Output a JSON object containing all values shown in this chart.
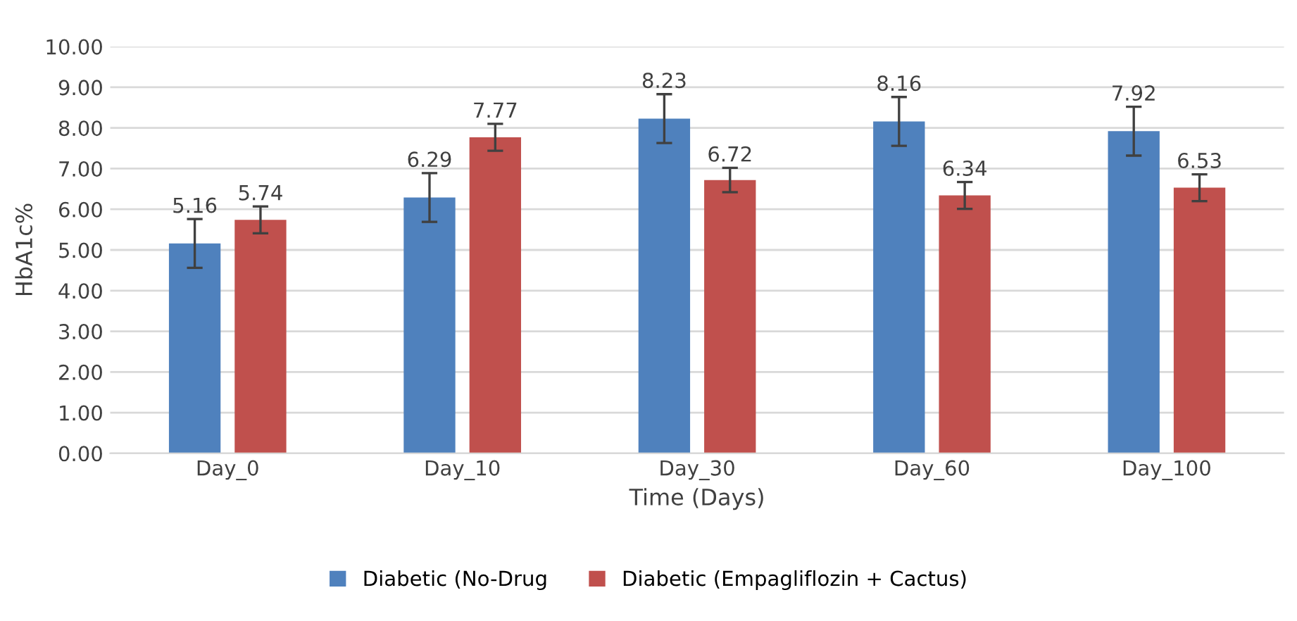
{
  "chart_data": {
    "type": "bar",
    "xlabel": "Time (Days)",
    "ylabel": "HbA1c%",
    "categories": [
      "Day_0",
      "Day_10",
      "Day_30",
      "Day_60",
      "Day_100"
    ],
    "series": [
      {
        "name": "Diabetic (No-Drug",
        "color": "#4f81bd",
        "values": [
          5.16,
          6.29,
          8.23,
          8.16,
          7.92
        ],
        "errors": [
          0.6,
          0.6,
          0.6,
          0.6,
          0.6
        ]
      },
      {
        "name": "Diabetic (Empagliflozin + Cactus)",
        "color": "#c0504d",
        "values": [
          5.74,
          7.77,
          6.72,
          6.34,
          6.53
        ],
        "errors": [
          0.33,
          0.33,
          0.3,
          0.33,
          0.33
        ]
      }
    ],
    "ylim": [
      0,
      10
    ],
    "yticks": [
      {
        "value": 0,
        "label": "0.00"
      },
      {
        "value": 1,
        "label": "1.00"
      },
      {
        "value": 2,
        "label": "2.00"
      },
      {
        "value": 3,
        "label": "3.00"
      },
      {
        "value": 4,
        "label": "4.00"
      },
      {
        "value": 5,
        "label": "5.00"
      },
      {
        "value": 6,
        "label": "6.00"
      },
      {
        "value": 7,
        "label": "7.00"
      },
      {
        "value": 8,
        "label": "8.00"
      },
      {
        "value": 9,
        "label": "9.00"
      },
      {
        "value": 10,
        "label": "10.00"
      }
    ],
    "grid": "y",
    "legend": "bottom",
    "data_labels": true
  }
}
